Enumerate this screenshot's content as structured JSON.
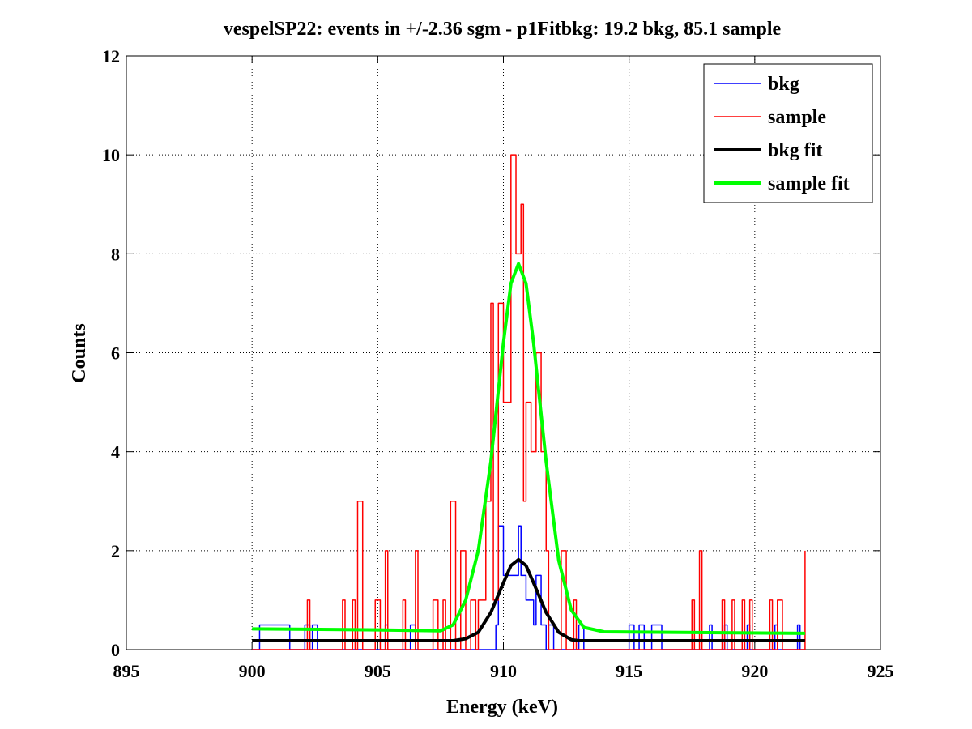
{
  "chart_data": {
    "type": "line",
    "title": "vespelSP22: events in +/-2.36 sgm - p1Fitbkg: 19.2 bkg, 85.1 sample",
    "xlabel": "Energy (keV)",
    "ylabel": "Counts",
    "xlim": [
      895,
      925
    ],
    "ylim": [
      0,
      12
    ],
    "xticks": [
      895,
      900,
      905,
      910,
      915,
      920,
      925
    ],
    "yticks": [
      0,
      2,
      4,
      6,
      8,
      10,
      12
    ],
    "grid": true,
    "legend_position": "top-right",
    "series": [
      {
        "name": "bkg",
        "style": "step",
        "color": "#0000ff",
        "points": [
          [
            900.0,
            0
          ],
          [
            900.3,
            0.5
          ],
          [
            901.5,
            0
          ],
          [
            902.1,
            0.5
          ],
          [
            902.3,
            0
          ],
          [
            902.4,
            0.5
          ],
          [
            902.6,
            0
          ],
          [
            905.3,
            0.5
          ],
          [
            905.4,
            0
          ],
          [
            906.3,
            0.5
          ],
          [
            906.5,
            0
          ],
          [
            909.7,
            0.5
          ],
          [
            909.8,
            2.5
          ],
          [
            910.0,
            1.5
          ],
          [
            910.6,
            2.5
          ],
          [
            910.7,
            1.5
          ],
          [
            910.9,
            1
          ],
          [
            911.2,
            0.5
          ],
          [
            911.3,
            1.5
          ],
          [
            911.5,
            0.5
          ],
          [
            911.7,
            0
          ],
          [
            911.8,
            0.5
          ],
          [
            912.0,
            0
          ],
          [
            913.0,
            0.5
          ],
          [
            913.2,
            0
          ],
          [
            915.0,
            0.5
          ],
          [
            915.2,
            0
          ],
          [
            915.4,
            0.5
          ],
          [
            915.6,
            0
          ],
          [
            915.9,
            0.5
          ],
          [
            916.3,
            0
          ],
          [
            918.2,
            0.5
          ],
          [
            918.3,
            0
          ],
          [
            918.8,
            0.5
          ],
          [
            918.9,
            0
          ],
          [
            919.7,
            0.5
          ],
          [
            919.8,
            0
          ],
          [
            920.8,
            0.5
          ],
          [
            920.9,
            0
          ],
          [
            921.7,
            0.5
          ],
          [
            921.8,
            0
          ],
          [
            922.0,
            0
          ]
        ]
      },
      {
        "name": "sample",
        "style": "step",
        "color": "#ff0000",
        "points": [
          [
            900.0,
            0
          ],
          [
            902.2,
            1
          ],
          [
            902.3,
            0
          ],
          [
            903.6,
            1
          ],
          [
            903.7,
            0
          ],
          [
            904.0,
            1
          ],
          [
            904.1,
            0
          ],
          [
            904.2,
            3
          ],
          [
            904.4,
            0
          ],
          [
            904.9,
            1
          ],
          [
            905.1,
            0
          ],
          [
            905.3,
            2
          ],
          [
            905.4,
            0
          ],
          [
            906.0,
            1
          ],
          [
            906.1,
            0
          ],
          [
            906.5,
            2
          ],
          [
            906.6,
            0
          ],
          [
            907.2,
            1
          ],
          [
            907.4,
            0
          ],
          [
            907.6,
            1
          ],
          [
            907.7,
            0
          ],
          [
            907.9,
            3
          ],
          [
            908.1,
            0
          ],
          [
            908.3,
            2
          ],
          [
            908.5,
            0
          ],
          [
            908.7,
            1
          ],
          [
            908.9,
            0
          ],
          [
            909.0,
            1
          ],
          [
            909.3,
            3
          ],
          [
            909.5,
            7
          ],
          [
            909.6,
            1
          ],
          [
            909.8,
            7
          ],
          [
            910.0,
            5
          ],
          [
            910.3,
            10
          ],
          [
            910.5,
            8
          ],
          [
            910.7,
            9
          ],
          [
            910.8,
            3
          ],
          [
            910.9,
            5
          ],
          [
            911.1,
            4
          ],
          [
            911.3,
            6
          ],
          [
            911.5,
            4
          ],
          [
            911.7,
            2
          ],
          [
            911.8,
            0
          ],
          [
            912.3,
            2
          ],
          [
            912.5,
            0
          ],
          [
            912.8,
            1
          ],
          [
            912.9,
            0
          ],
          [
            917.5,
            1
          ],
          [
            917.6,
            0
          ],
          [
            917.8,
            2
          ],
          [
            917.9,
            0
          ],
          [
            918.7,
            1
          ],
          [
            918.8,
            0
          ],
          [
            919.1,
            1
          ],
          [
            919.2,
            0
          ],
          [
            919.5,
            1
          ],
          [
            919.6,
            0
          ],
          [
            919.8,
            1
          ],
          [
            919.9,
            0
          ],
          [
            920.6,
            1
          ],
          [
            920.7,
            0
          ],
          [
            920.9,
            1
          ],
          [
            921.1,
            0
          ],
          [
            922.0,
            2
          ]
        ]
      },
      {
        "name": "bkg fit",
        "style": "line",
        "color": "#000000",
        "points": [
          [
            900.0,
            0.18
          ],
          [
            908.0,
            0.18
          ],
          [
            908.5,
            0.22
          ],
          [
            909.0,
            0.35
          ],
          [
            909.5,
            0.75
          ],
          [
            910.0,
            1.35
          ],
          [
            910.3,
            1.7
          ],
          [
            910.6,
            1.82
          ],
          [
            910.9,
            1.7
          ],
          [
            911.2,
            1.35
          ],
          [
            911.7,
            0.75
          ],
          [
            912.2,
            0.35
          ],
          [
            912.7,
            0.2
          ],
          [
            913.0,
            0.18
          ],
          [
            922.0,
            0.18
          ]
        ]
      },
      {
        "name": "sample fit",
        "style": "line",
        "color": "#00ff00",
        "points": [
          [
            900.0,
            0.42
          ],
          [
            905.0,
            0.4
          ],
          [
            907.5,
            0.38
          ],
          [
            908.0,
            0.5
          ],
          [
            908.5,
            1.0
          ],
          [
            909.0,
            2.0
          ],
          [
            909.5,
            3.8
          ],
          [
            910.0,
            6.2
          ],
          [
            910.3,
            7.4
          ],
          [
            910.6,
            7.8
          ],
          [
            910.9,
            7.4
          ],
          [
            911.2,
            6.2
          ],
          [
            911.7,
            3.8
          ],
          [
            912.2,
            1.8
          ],
          [
            912.7,
            0.8
          ],
          [
            913.2,
            0.45
          ],
          [
            914.0,
            0.36
          ],
          [
            922.0,
            0.33
          ]
        ]
      }
    ]
  }
}
